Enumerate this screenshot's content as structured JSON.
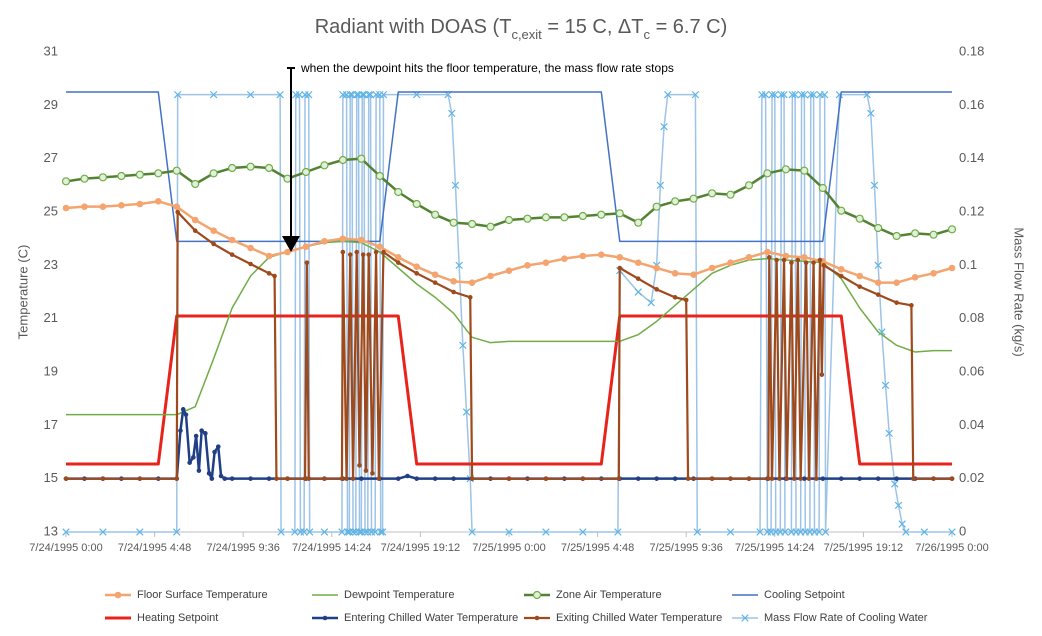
{
  "chart_data": {
    "type": "line",
    "title_parts": [
      "Radiant with DOAS (T",
      "c,exit",
      " = 15 C, ΔT",
      "c",
      " = 6.7 C)"
    ],
    "annotation": "when the dewpoint hits the floor temperature, the mass flow rate stops",
    "ylabel": "Temperature (C)",
    "y2label": "Mass Flow Rate (kg/s)",
    "xlim": [
      0,
      48
    ],
    "xticks": [
      {
        "value": 0,
        "label": "7/24/1995 0:00"
      },
      {
        "value": 4.8,
        "label": "7/24/1995 4:48"
      },
      {
        "value": 9.6,
        "label": "7/24/1995 9:36"
      },
      {
        "value": 14.4,
        "label": "7/24/1995 14:24"
      },
      {
        "value": 19.2,
        "label": "7/24/1995 19:12"
      },
      {
        "value": 24,
        "label": "7/25/1995 0:00"
      },
      {
        "value": 28.8,
        "label": "7/25/1995 4:48"
      },
      {
        "value": 33.6,
        "label": "7/25/1995 9:36"
      },
      {
        "value": 38.4,
        "label": "7/25/1995 14:24"
      },
      {
        "value": 43.2,
        "label": "7/25/1995 19:12"
      },
      {
        "value": 48,
        "label": "7/26/1995 0:00"
      }
    ],
    "ylim": [
      13,
      31
    ],
    "yticks": [
      13,
      15,
      17,
      19,
      21,
      23,
      25,
      27,
      29,
      31
    ],
    "y2lim": [
      0,
      0.18
    ],
    "y2ticks": [
      0,
      0.02,
      0.04,
      0.06,
      0.08,
      0.1,
      0.12,
      0.14,
      0.16,
      0.18
    ],
    "x": [
      0,
      1,
      2,
      3,
      4,
      5,
      6,
      7,
      8,
      9,
      10,
      11,
      12,
      13,
      14,
      15,
      16,
      17,
      18,
      19,
      20,
      21,
      22,
      23,
      24,
      25,
      26,
      27,
      28,
      29,
      30,
      31,
      32,
      33,
      34,
      35,
      36,
      37,
      38,
      39,
      40,
      41,
      42,
      43,
      44,
      45,
      46,
      47,
      48
    ],
    "series": [
      {
        "name": "Floor Surface Temperature",
        "color": "#f4a46e",
        "marker": "circle",
        "values": [
          25.15,
          25.2,
          25.2,
          25.25,
          25.3,
          25.4,
          25.2,
          24.7,
          24.3,
          23.95,
          23.65,
          23.35,
          23.5,
          23.7,
          23.9,
          24.0,
          23.95,
          23.7,
          23.3,
          22.95,
          22.65,
          22.4,
          22.35,
          22.6,
          22.8,
          23.0,
          23.1,
          23.25,
          23.35,
          23.4,
          23.3,
          23.1,
          22.9,
          22.7,
          22.65,
          22.9,
          23.1,
          23.3,
          23.5,
          23.35,
          23.3,
          23.15,
          22.85,
          22.6,
          22.35,
          22.35,
          22.55,
          22.7,
          22.9
        ]
      },
      {
        "name": "Dewpoint Temperature",
        "color": "#70ad47",
        "marker": "none",
        "values": [
          17.4,
          17.4,
          17.4,
          17.4,
          17.4,
          17.4,
          17.4,
          17.7,
          19.5,
          21.4,
          22.6,
          23.3,
          23.5,
          23.7,
          23.85,
          23.9,
          23.85,
          23.5,
          22.9,
          22.3,
          21.8,
          21.2,
          20.3,
          20.1,
          20.15,
          20.15,
          20.15,
          20.15,
          20.15,
          20.15,
          20.15,
          20.4,
          20.9,
          21.5,
          22.1,
          22.7,
          23.0,
          23.2,
          23.25,
          23.2,
          23.15,
          23.1,
          22.5,
          21.4,
          20.5,
          20.0,
          19.75,
          19.8,
          19.8
        ]
      },
      {
        "name": "Zone Air Temperature",
        "color": "#548235",
        "marker": "circle-open",
        "values": [
          26.15,
          26.25,
          26.3,
          26.35,
          26.4,
          26.45,
          26.55,
          26.05,
          26.45,
          26.65,
          26.7,
          26.65,
          26.25,
          26.5,
          26.75,
          26.95,
          27.0,
          26.35,
          25.75,
          25.3,
          24.9,
          24.6,
          24.55,
          24.45,
          24.7,
          24.75,
          24.8,
          24.8,
          24.85,
          24.9,
          24.95,
          24.6,
          25.2,
          25.4,
          25.5,
          25.7,
          25.65,
          26.0,
          26.45,
          26.6,
          26.55,
          25.9,
          25.05,
          24.75,
          24.4,
          24.1,
          24.2,
          24.15,
          24.35
        ]
      },
      {
        "name": "Cooling Setpoint",
        "color": "#4472c4",
        "marker": "none",
        "values": [
          29.5,
          29.5,
          29.5,
          29.5,
          29.5,
          29.5,
          23.9,
          23.9,
          23.9,
          23.9,
          23.9,
          23.9,
          23.9,
          23.9,
          23.9,
          23.9,
          23.9,
          23.9,
          29.5,
          29.5,
          29.5,
          29.5,
          29.5,
          29.5,
          29.5,
          29.5,
          29.5,
          29.5,
          29.5,
          29.5,
          23.9,
          23.9,
          23.9,
          23.9,
          23.9,
          23.9,
          23.9,
          23.9,
          23.9,
          23.9,
          23.9,
          23.9,
          29.5,
          29.5,
          29.5,
          29.5,
          29.5,
          29.5,
          29.5
        ]
      },
      {
        "name": "Heating Setpoint",
        "color": "#e8231c",
        "marker": "none",
        "values": [
          15.55,
          15.55,
          15.55,
          15.55,
          15.55,
          15.55,
          21.1,
          21.1,
          21.1,
          21.1,
          21.1,
          21.1,
          21.1,
          21.1,
          21.1,
          21.1,
          21.1,
          21.1,
          21.1,
          15.55,
          15.55,
          15.55,
          15.55,
          15.55,
          15.55,
          15.55,
          15.55,
          15.55,
          15.55,
          15.55,
          21.1,
          21.1,
          21.1,
          21.1,
          21.1,
          21.1,
          21.1,
          21.1,
          21.1,
          21.1,
          21.1,
          21.1,
          21.1,
          15.55,
          15.55,
          15.55,
          15.55,
          15.55,
          15.55
        ]
      },
      {
        "name": "Entering Chilled Water Temperature",
        "color": "#203f85",
        "marker": "dot",
        "x": [
          0,
          1,
          2,
          3,
          4,
          5,
          6,
          6.2,
          6.35,
          6.5,
          6.7,
          6.9,
          7.05,
          7.2,
          7.35,
          7.55,
          7.75,
          7.9,
          8.05,
          8.25,
          8.4,
          8.6,
          9,
          10,
          11,
          12,
          13,
          14,
          15,
          16,
          17,
          18,
          18.5,
          19,
          20,
          21,
          22,
          23,
          24,
          25,
          26,
          27,
          28,
          29,
          30,
          31,
          32,
          33,
          34,
          35,
          36,
          37,
          38,
          39,
          40,
          41,
          42,
          43,
          44,
          45,
          46,
          47,
          48
        ],
        "values": [
          15,
          15,
          15,
          15,
          15,
          15,
          15,
          16.8,
          17.6,
          17.4,
          15.6,
          15.8,
          16.6,
          15.3,
          16.8,
          16.7,
          15.2,
          15.0,
          16.0,
          16.2,
          15.1,
          15.0,
          15,
          15,
          15,
          15,
          15,
          15,
          15,
          15,
          15,
          15,
          15.1,
          15,
          15,
          15,
          15,
          15,
          15,
          15,
          15,
          15,
          15,
          15,
          15,
          15,
          15,
          15,
          15,
          15,
          15,
          15,
          15,
          15,
          15,
          15,
          15,
          15,
          15,
          15,
          15,
          15,
          15
        ]
      },
      {
        "name": "Exiting Chilled Water Temperature",
        "color": "#9e4a1c",
        "marker": "dot",
        "x": [
          0,
          2,
          4,
          6,
          6.05,
          7,
          8,
          9,
          10,
          11,
          11.3,
          11.4,
          12,
          12.95,
          13.05,
          13.15,
          14,
          14.95,
          15,
          15.2,
          15.4,
          15.55,
          15.75,
          15.9,
          16.1,
          16.25,
          16.4,
          16.6,
          16.8,
          16.95,
          17.2,
          18,
          19,
          20,
          21,
          21.9,
          22,
          24,
          26,
          28,
          29.95,
          30,
          31,
          32,
          33,
          33.6,
          33.7,
          35,
          36,
          37,
          38.05,
          38.1,
          38.25,
          38.5,
          38.65,
          38.9,
          39.05,
          39.3,
          39.45,
          39.65,
          39.8,
          40.1,
          40.25,
          40.5,
          40.65,
          40.85,
          40.95,
          41.05,
          42,
          43,
          44,
          45,
          45.8,
          45.9,
          47,
          48
        ],
        "values": [
          15,
          15,
          15,
          15,
          25,
          24.3,
          23.8,
          23.4,
          23.05,
          22.7,
          22.6,
          15,
          15,
          15,
          23.1,
          15,
          15,
          15,
          23.5,
          15,
          23.4,
          15,
          23.5,
          15.5,
          23.4,
          15.3,
          23.4,
          15.2,
          23.5,
          15,
          23.5,
          23.1,
          22.7,
          22.35,
          22.0,
          21.8,
          15,
          15,
          15,
          15,
          15,
          22.9,
          22.5,
          22.1,
          21.8,
          21.7,
          15,
          15,
          15,
          15,
          15,
          23.3,
          15,
          23.2,
          15,
          23.2,
          15,
          23.1,
          15,
          23.2,
          15,
          23.1,
          15,
          23.1,
          15,
          23.2,
          18.9,
          23.0,
          22.6,
          22.2,
          21.9,
          21.6,
          21.5,
          15,
          15,
          15
        ]
      },
      {
        "name": "Mass Flow Rate of Cooling Water",
        "color": "#5fb4e6",
        "marker": "x",
        "axis": "y2",
        "x": [
          0,
          2,
          4,
          6,
          6.05,
          8,
          10,
          11.6,
          11.65,
          12.4,
          12.45,
          12.65,
          12.7,
          12.9,
          12.95,
          13.15,
          13.2,
          14,
          14.95,
          15,
          15.2,
          15.25,
          15.35,
          15.4,
          15.5,
          15.55,
          15.7,
          15.75,
          15.85,
          15.9,
          16,
          16.05,
          16.15,
          16.2,
          16.35,
          16.4,
          16.5,
          16.55,
          16.75,
          16.8,
          17,
          17.05,
          17.15,
          17.2,
          19,
          20.7,
          20.9,
          21.1,
          21.3,
          21.5,
          21.7,
          21.9,
          22,
          24,
          26,
          28,
          29.9,
          30,
          31,
          31.7,
          32,
          32.2,
          32.4,
          32.6,
          34.1,
          34.2,
          36,
          37.6,
          37.7,
          37.9,
          38,
          38.2,
          38.25,
          38.4,
          38.45,
          38.7,
          38.75,
          38.9,
          38.95,
          39.3,
          39.35,
          39.5,
          39.55,
          39.8,
          39.85,
          40,
          40.05,
          40.3,
          40.35,
          40.5,
          40.55,
          40.8,
          40.85,
          41.1,
          41.15,
          41.9,
          43.4,
          43.6,
          43.8,
          44,
          44.2,
          44.4,
          44.6,
          44.9,
          45.1,
          45.3,
          45.5,
          46.5,
          48
        ],
        "values": [
          0,
          0,
          0,
          0,
          0.164,
          0.164,
          0.164,
          0.164,
          0,
          0,
          0.164,
          0.164,
          0,
          0,
          0.164,
          0.164,
          0,
          0,
          0,
          0.164,
          0.164,
          0,
          0,
          0.164,
          0.164,
          0,
          0,
          0.164,
          0.164,
          0,
          0,
          0.164,
          0.164,
          0,
          0,
          0.164,
          0.164,
          0,
          0,
          0.164,
          0.164,
          0,
          0,
          0.164,
          0.164,
          0.164,
          0.157,
          0.13,
          0.1,
          0.07,
          0.045,
          0.02,
          0,
          0,
          0,
          0,
          0,
          0.098,
          0.09,
          0.086,
          0.1,
          0.13,
          0.152,
          0.164,
          0.164,
          0,
          0,
          0,
          0.164,
          0.164,
          0,
          0,
          0.164,
          0.164,
          0,
          0,
          0.164,
          0.164,
          0,
          0,
          0.164,
          0.164,
          0,
          0,
          0.164,
          0.164,
          0,
          0,
          0.164,
          0.164,
          0,
          0,
          0.164,
          0.164,
          0,
          0.164,
          0.164,
          0.157,
          0.13,
          0.1,
          0.075,
          0.055,
          0.037,
          0.018,
          0.01,
          0.003,
          0,
          0,
          0
        ]
      }
    ]
  }
}
